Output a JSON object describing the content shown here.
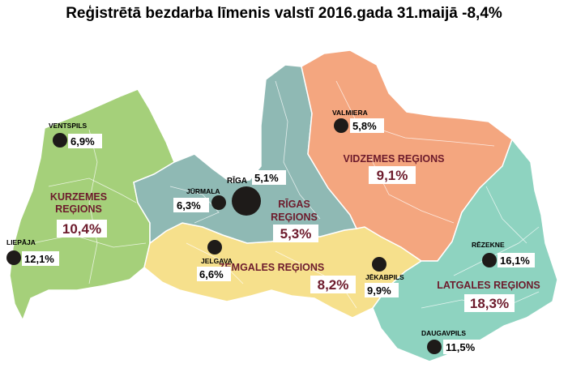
{
  "title": "Reģistrētā bezdarba līmenis valstī 2016.gada 31.maijā -8,4%",
  "colors": {
    "kurzeme": "#a5d07a",
    "riga": "#8fb9b4",
    "vidzeme": "#f4a67f",
    "zemgale": "#f6e08c",
    "latgale": "#8ed3c0",
    "region_label": "#6d1b2c",
    "dot": "#1e1b19"
  },
  "regions": [
    {
      "id": "kurzeme",
      "name_line1": "KURZEMES",
      "name_line2": "REĢIONS",
      "pct": "10,4%"
    },
    {
      "id": "riga",
      "name_line1": "RĪGAS",
      "name_line2": "REĢIONS",
      "pct": "5,3%"
    },
    {
      "id": "vidzeme",
      "name": "VIDZEMES REĢIONS",
      "pct": "9,1%"
    },
    {
      "id": "zemgale",
      "name": "ZEMGALES REĢIONS",
      "pct": "8,2%"
    },
    {
      "id": "latgale",
      "name": "LATGALES REĢIONS",
      "pct": "18,3%"
    }
  ],
  "cities": [
    {
      "id": "ventspils",
      "name": "VENTSPILS",
      "pct": "6,9%"
    },
    {
      "id": "liepaja",
      "name": "LIEPĀJA",
      "pct": "12,1%"
    },
    {
      "id": "jurmala",
      "name": "JŪRMALA",
      "pct": "6,3%"
    },
    {
      "id": "riga",
      "name": "RĪGA",
      "pct": "5,1%"
    },
    {
      "id": "jelgava",
      "name": "JELGAVA",
      "pct": "6,6%"
    },
    {
      "id": "valmiera",
      "name": "VALMIERA",
      "pct": "5,8%"
    },
    {
      "id": "jekabpils",
      "name": "JĒKABPILS",
      "pct": "9,9%"
    },
    {
      "id": "rezekne",
      "name": "RĒZEKNE",
      "pct": "16,1%"
    },
    {
      "id": "daugavpils",
      "name": "DAUGAVPILS",
      "pct": "11,5%"
    }
  ]
}
